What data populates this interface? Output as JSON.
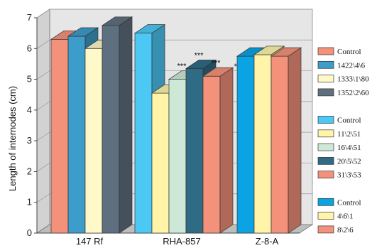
{
  "chart_data": {
    "type": "bar",
    "style": "3d-grouped",
    "ylabel": "Length of internodes (cm)",
    "ylim": [
      0,
      7
    ],
    "yticks": [
      0,
      1,
      2,
      3,
      4,
      5,
      6,
      7
    ],
    "grid": true,
    "legend_position": "right",
    "groups": [
      {
        "label": "147 Rf",
        "bars": [
          {
            "name": "Control",
            "value": 6.3,
            "color": "#f4917a",
            "annotation": ""
          },
          {
            "name": "1422\\4\\6",
            "value": 6.4,
            "color": "#3c9cca",
            "annotation": ""
          },
          {
            "name": "1333\\1\\80",
            "value": 6.0,
            "color": "#fff8c8",
            "annotation": ""
          },
          {
            "name": "1352\\2\\60",
            "value": 6.75,
            "color": "#5e7080",
            "annotation": ""
          }
        ]
      },
      {
        "label": "RHA-857",
        "bars": [
          {
            "name": "Control",
            "value": 6.5,
            "color": "#4cc8f4",
            "annotation": ""
          },
          {
            "name": "11\\2\\51",
            "value": 4.55,
            "color": "#fff4a8",
            "annotation": ""
          },
          {
            "name": "16\\4\\51",
            "value": 5.0,
            "color": "#cde8d6",
            "annotation": "***"
          },
          {
            "name": "20\\5\\52",
            "value": 5.35,
            "color": "#2f6b84",
            "annotation": "***"
          },
          {
            "name": "31\\3\\53",
            "value": 5.1,
            "color": "#f4917a",
            "annotation": "***"
          }
        ],
        "trailing_annotation": "***"
      },
      {
        "label": "Z-8-A",
        "bars": [
          {
            "name": "Control",
            "value": 5.75,
            "color": "#0aa4e4",
            "annotation": ""
          },
          {
            "name": "4\\6\\1",
            "value": 5.8,
            "color": "#fff4a8",
            "annotation": ""
          },
          {
            "name": "8\\2\\6",
            "value": 5.75,
            "color": "#f4917a",
            "annotation": ""
          }
        ]
      }
    ]
  }
}
